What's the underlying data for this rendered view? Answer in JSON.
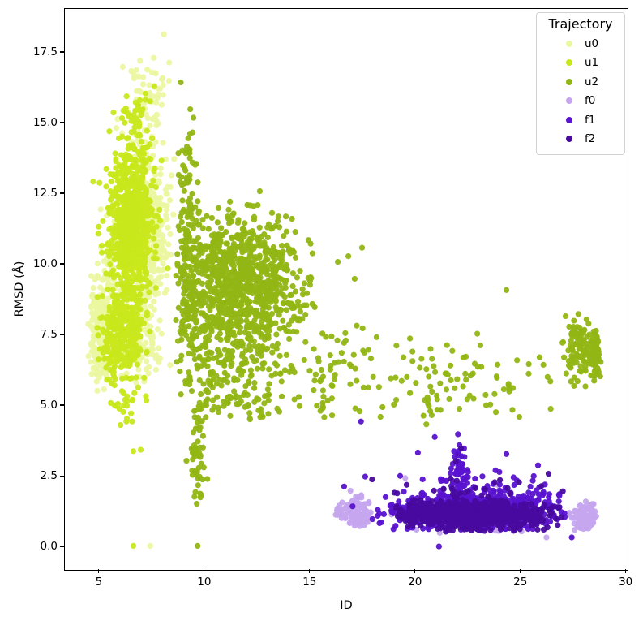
{
  "figure": {
    "background": "#ffffff",
    "axis_color": "#000000"
  },
  "chart_data": {
    "type": "scatter",
    "title": "",
    "xlabel": "ID",
    "ylabel": "RMSD (Å)",
    "xlim": [
      3.35,
      30.05
    ],
    "ylim": [
      -0.8,
      19.05
    ],
    "grid": false,
    "x_ticks": [
      {
        "v": 5,
        "label": "5"
      },
      {
        "v": 10,
        "label": "10"
      },
      {
        "v": 15,
        "label": "15"
      },
      {
        "v": 20,
        "label": "20"
      },
      {
        "v": 25,
        "label": "25"
      },
      {
        "v": 30,
        "label": "30"
      }
    ],
    "y_ticks": [
      {
        "v": 0.0,
        "label": "0.0"
      },
      {
        "v": 2.5,
        "label": "2.5"
      },
      {
        "v": 5.0,
        "label": "5.0"
      },
      {
        "v": 7.5,
        "label": "7.5"
      },
      {
        "v": 10.0,
        "label": "10.0"
      },
      {
        "v": 12.5,
        "label": "12.5"
      },
      {
        "v": 15.0,
        "label": "15.0"
      },
      {
        "v": 17.5,
        "label": "17.5"
      }
    ],
    "legend": {
      "title": "Trajectory",
      "position": "upper right",
      "entries": [
        "u0",
        "u1",
        "u2",
        "f0",
        "f1",
        "f2"
      ]
    },
    "marker": {
      "radius_px": 3.6,
      "opacity": 0.95
    },
    "series": [
      {
        "name": "u0",
        "color": "#ecf7a1",
        "clusters": [
          {
            "n": 180,
            "cx": 4.98,
            "cy": 7.5,
            "sx": 0.2,
            "sy": 1.05,
            "ymin": 5.5,
            "ymax": 10.8
          },
          {
            "n": 90,
            "cx": 5.6,
            "cy": 9.0,
            "sx": 0.35,
            "sy": 1.6,
            "ymin": 6.0,
            "ymax": 13.0
          },
          {
            "n": 380,
            "cx": 7.3,
            "cy": 11.2,
            "sx": 0.5,
            "sy": 1.75,
            "ymin": 6.6,
            "ymax": 15.3
          },
          {
            "n": 55,
            "cx": 7.2,
            "cy": 15.8,
            "sx": 0.55,
            "sy": 0.75,
            "ymin": 14.7,
            "ymax": 17.4
          },
          {
            "n": 70,
            "cx": 6.9,
            "cy": 6.9,
            "sx": 0.5,
            "sy": 0.55,
            "ymin": 5.7,
            "ymax": 8.2
          }
        ],
        "points": [
          [
            8.05,
            18.15
          ],
          [
            6.1,
            17.0
          ],
          [
            6.5,
            16.85
          ],
          [
            8.3,
            17.15
          ],
          [
            7.4,
            0.05
          ],
          [
            4.6,
            9.6
          ]
        ]
      },
      {
        "name": "u1",
        "color": "#c9e81c",
        "clusters": [
          {
            "n": 800,
            "cx": 6.5,
            "cy": 11.6,
            "sx": 0.5,
            "sy": 1.35,
            "ymin": 8.8,
            "ymax": 14.6
          },
          {
            "n": 230,
            "cx": 6.35,
            "cy": 7.9,
            "sx": 0.45,
            "sy": 1.0,
            "ymin": 5.9,
            "ymax": 9.4
          },
          {
            "n": 90,
            "cx": 5.55,
            "cy": 7.3,
            "sx": 0.28,
            "sy": 0.95,
            "ymin": 5.6,
            "ymax": 9.6
          },
          {
            "n": 40,
            "cx": 6.7,
            "cy": 15.0,
            "sx": 0.45,
            "sy": 0.55,
            "ymin": 14.3,
            "ymax": 16.6
          },
          {
            "n": 25,
            "cx": 6.2,
            "cy": 4.9,
            "sx": 0.5,
            "sy": 0.6,
            "ymin": 3.7,
            "ymax": 6.1
          }
        ],
        "points": [
          [
            6.6,
            3.4
          ],
          [
            6.95,
            3.45
          ],
          [
            6.6,
            0.05
          ],
          [
            7.6,
            16.3
          ]
        ]
      },
      {
        "name": "u2",
        "color": "#92b614",
        "clusters": [
          {
            "n": 1000,
            "cx": 11.7,
            "cy": 9.2,
            "sx": 1.45,
            "sy": 1.25,
            "xmin": 8.9,
            "xmax": 15.3,
            "ymin": 6.2,
            "ymax": 12.4
          },
          {
            "n": 180,
            "cx": 9.2,
            "cy": 9.8,
            "sx": 0.3,
            "sy": 2.1,
            "xmin": 8.6,
            "xmax": 9.9,
            "ymin": 5.0,
            "ymax": 14.3
          },
          {
            "n": 12,
            "cx": 9.1,
            "cy": 13.4,
            "sx": 0.4,
            "sy": 0.7,
            "ymin": 12.5,
            "ymax": 15.6
          },
          {
            "n": 140,
            "cx": 11.6,
            "cy": 5.7,
            "sx": 1.5,
            "sy": 0.7,
            "xmin": 9.2,
            "xmax": 15.0,
            "ymin": 4.4,
            "ymax": 7.0
          },
          {
            "n": 55,
            "cx": 9.65,
            "cy": 3.1,
            "sx": 0.15,
            "sy": 1.05,
            "ymin": 1.1,
            "ymax": 5.3
          },
          {
            "n": 55,
            "cx": 16.2,
            "cy": 6.0,
            "sx": 0.85,
            "sy": 0.9,
            "xmin": 15.1,
            "xmax": 18.3,
            "ymin": 4.6,
            "ymax": 8.1
          },
          {
            "n": 90,
            "cx": 21.5,
            "cy": 5.9,
            "sx": 2.6,
            "sy": 0.7,
            "xmin": 17.6,
            "xmax": 26.8,
            "ymin": 4.6,
            "ymax": 7.7
          },
          {
            "n": 110,
            "cx": 27.8,
            "cy": 6.9,
            "sx": 0.45,
            "sy": 0.6,
            "xmin": 26.9,
            "xmax": 28.9,
            "ymin": 5.6,
            "ymax": 8.3
          },
          {
            "n": 70,
            "cx": 28.55,
            "cy": 6.7,
            "sx": 0.1,
            "sy": 0.5,
            "ymin": 5.9,
            "ymax": 7.7
          }
        ],
        "points": [
          [
            8.85,
            16.45
          ],
          [
            9.3,
            15.5
          ],
          [
            9.45,
            15.2
          ],
          [
            9.65,
            0.05
          ],
          [
            16.8,
            10.3
          ],
          [
            17.45,
            10.6
          ],
          [
            16.3,
            10.1
          ],
          [
            17.1,
            9.5
          ],
          [
            15.1,
            10.4
          ],
          [
            12.6,
            12.6
          ],
          [
            24.3,
            9.1
          ],
          [
            20.5,
            4.35
          ],
          [
            26.4,
            4.9
          ]
        ]
      },
      {
        "name": "f0",
        "color": "#c5a5ee",
        "clusters": [
          {
            "n": 120,
            "cx": 17.2,
            "cy": 1.2,
            "sx": 0.3,
            "sy": 0.24,
            "xmin": 16.5,
            "xmax": 18.1,
            "ymin": 0.6,
            "ymax": 2.0
          },
          {
            "n": 14,
            "cx": 16.33,
            "cy": 1.25,
            "sx": 0.08,
            "sy": 0.13
          },
          {
            "n": 110,
            "cx": 27.95,
            "cy": 1.05,
            "sx": 0.28,
            "sy": 0.24,
            "xmin": 27.2,
            "xmax": 28.75,
            "ymin": 0.5,
            "ymax": 1.8
          },
          {
            "n": 45,
            "cx": 22.5,
            "cy": 1.1,
            "sx": 2.2,
            "sy": 0.3,
            "xmin": 18.5,
            "xmax": 26.9,
            "ymin": 0.45,
            "ymax": 2.0
          }
        ],
        "points": [
          [
            19.5,
            2.45
          ],
          [
            21.4,
            2.35
          ],
          [
            23.9,
            2.2
          ],
          [
            26.2,
            0.35
          ],
          [
            16.9,
            2.0
          ]
        ]
      },
      {
        "name": "f1",
        "color": "#5a13d0",
        "clusters": [
          {
            "n": 650,
            "cx": 22.9,
            "cy": 1.3,
            "sx": 2.0,
            "sy": 0.33,
            "xmin": 18.8,
            "xmax": 27.2,
            "ymin": 0.6,
            "ymax": 2.4
          },
          {
            "n": 45,
            "cx": 22.1,
            "cy": 2.7,
            "sx": 0.22,
            "sy": 0.55,
            "ymin": 1.9,
            "ymax": 3.9
          },
          {
            "n": 45,
            "cx": 23.0,
            "cy": 2.15,
            "sx": 2.1,
            "sy": 0.35,
            "xmin": 19.2,
            "xmax": 26.8,
            "ymin": 1.7,
            "ymax": 3.4
          },
          {
            "n": 12,
            "cx": 18.4,
            "cy": 1.3,
            "sx": 0.4,
            "sy": 0.35,
            "ymin": 0.7,
            "ymax": 2.0
          }
        ],
        "points": [
          [
            17.4,
            4.45
          ],
          [
            20.9,
            3.9
          ],
          [
            22.0,
            4.0
          ],
          [
            21.1,
            0.03
          ],
          [
            27.4,
            0.35
          ],
          [
            17.0,
            1.45
          ],
          [
            16.6,
            2.15
          ],
          [
            17.6,
            2.5
          ],
          [
            24.3,
            3.3
          ],
          [
            25.8,
            2.9
          ],
          [
            20.1,
            3.35
          ]
        ]
      },
      {
        "name": "f2",
        "color": "#48099f",
        "clusters": [
          {
            "n": 750,
            "cx": 22.6,
            "cy": 1.15,
            "sx": 1.85,
            "sy": 0.27,
            "xmin": 19.0,
            "xmax": 27.05,
            "ymin": 0.55,
            "ymax": 2.0
          },
          {
            "n": 25,
            "cx": 22.3,
            "cy": 1.95,
            "sx": 1.7,
            "sy": 0.3,
            "ymin": 1.6,
            "ymax": 2.9
          }
        ],
        "points": [
          [
            21.9,
            3.05
          ],
          [
            22.15,
            3.5
          ],
          [
            24.9,
            2.3
          ],
          [
            26.3,
            2.6
          ]
        ]
      }
    ]
  }
}
